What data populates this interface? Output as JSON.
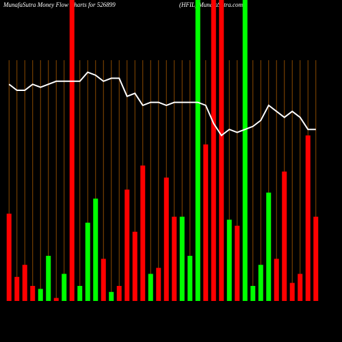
{
  "chart_data": {
    "type": "bar",
    "title": "MunafaSutra  Money Flow  Charts for 526899",
    "subtitle": "(HFIL) MunafaSutra.com",
    "categories": [
      null,
      null,
      null,
      null,
      null,
      null,
      null,
      null,
      null,
      null,
      null,
      null,
      null,
      null,
      null,
      null,
      null,
      null,
      null,
      null,
      null,
      null,
      null,
      null,
      null,
      null,
      null,
      null,
      null,
      null,
      null,
      null,
      null,
      null,
      null,
      null,
      null,
      null,
      null,
      null
    ],
    "values": [
      29,
      8,
      12,
      5,
      4,
      15,
      1,
      9,
      100,
      5,
      26,
      34,
      14,
      3,
      5,
      37,
      23,
      45,
      9,
      11,
      41,
      28,
      28,
      15,
      100,
      52,
      100,
      100,
      27,
      25,
      100,
      5,
      12,
      36,
      14,
      43,
      6,
      9,
      55,
      28
    ],
    "colors": [
      "#ff0000",
      "#ff0000",
      "#ff0000",
      "#ff0000",
      "#00ff00",
      "#00ff00",
      "#ff0000",
      "#00ff00",
      "#ff0000",
      "#00ff00",
      "#00ff00",
      "#00ff00",
      "#ff0000",
      "#00ff00",
      "#ff0000",
      "#ff0000",
      "#ff0000",
      "#ff0000",
      "#00ff00",
      "#ff0000",
      "#ff0000",
      "#ff0000",
      "#00ff00",
      "#00ff00",
      "#00ff00",
      "#ff0000",
      "#ff0000",
      "#ff0000",
      "#00ff00",
      "#ff0000",
      "#00ff00",
      "#00ff00",
      "#00ff00",
      "#00ff00",
      "#ff0000",
      "#ff0000",
      "#ff0000",
      "#ff0000",
      "#ff0000",
      "#ff0000"
    ],
    "line": {
      "color": "#ffffff",
      "values": [
        72,
        70,
        70,
        72,
        71,
        72,
        73,
        73,
        73,
        73,
        76,
        75,
        73,
        74,
        74,
        68,
        69,
        65,
        66,
        66,
        65,
        66,
        66,
        66,
        66,
        65,
        59,
        55,
        57,
        56,
        57,
        58,
        60,
        65,
        63,
        61,
        63,
        61,
        57,
        57
      ]
    },
    "ylim": [
      0,
      100
    ],
    "grid": true,
    "grid_color": "#8b4a00"
  }
}
